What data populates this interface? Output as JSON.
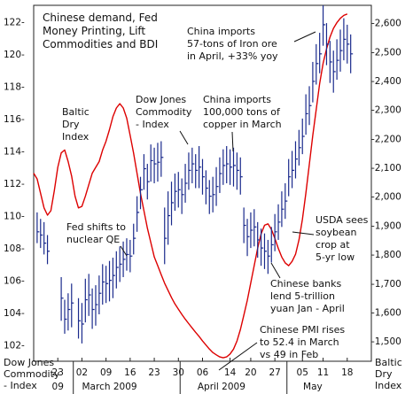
{
  "chart_data": {
    "type": "bar",
    "title_lines": [
      "Chinese demand, Fed",
      "Money Printing, Lift",
      "Commodities and BDI"
    ],
    "left_axis": {
      "label_lines": [
        "Dow Jones",
        "Commodity",
        "- Index"
      ],
      "range": [
        101,
        123
      ],
      "ticks": [
        102,
        104,
        106,
        108,
        110,
        112,
        114,
        116,
        118,
        120,
        122
      ],
      "tick_labels": [
        "102-",
        "104-",
        "106-",
        "108-",
        "110-",
        "112-",
        "114-",
        "116-",
        "118-",
        "120-",
        "122-"
      ]
    },
    "right_axis": {
      "label_lines": [
        "Baltic",
        "Dry",
        "Index"
      ],
      "color": "#cc0000",
      "range": [
        1430,
        2660
      ],
      "ticks": [
        1500,
        1600,
        1700,
        1800,
        1900,
        2000,
        2100,
        2200,
        2300,
        2400,
        2500,
        2600
      ],
      "tick_labels": [
        "-1,500",
        "-1,600",
        "-1,700",
        "-1,800",
        "-1,900",
        "-2,000",
        "-2,100",
        "-2,200",
        "-2,300",
        "-2,400",
        "-2,500",
        "-2,600"
      ]
    },
    "x_axis": {
      "days": [
        {
          "label": "23",
          "at": 0
        },
        {
          "label": "02",
          "at": 7
        },
        {
          "label": "09",
          "at": 14
        },
        {
          "label": "16",
          "at": 21
        },
        {
          "label": "23",
          "at": 28
        },
        {
          "label": "30",
          "at": 35
        },
        {
          "label": "06",
          "at": 42
        },
        {
          "label": "14",
          "at": 50
        },
        {
          "label": "20",
          "at": 56
        },
        {
          "label": "27",
          "at": 63
        },
        {
          "label": "05",
          "at": 71
        },
        {
          "label": "11",
          "at": 77
        },
        {
          "label": "18",
          "at": 84
        }
      ],
      "months": [
        {
          "label": "09",
          "at": 0
        },
        {
          "label": "March 2009",
          "at": 15
        },
        {
          "label": "April 2009",
          "at": 47.5
        },
        {
          "label": "May",
          "at": 74
        }
      ],
      "separators": [
        4.5,
        35.5,
        66.5
      ],
      "range": [
        -7,
        91
      ]
    },
    "series": [
      {
        "name": "Dow Jones Commodity - Index",
        "axis": "left",
        "color": "#1a2a8c",
        "style": "hlc_bars",
        "x": [
          -6,
          -5,
          -4,
          -3,
          1,
          2,
          3,
          4,
          6,
          7,
          8,
          9,
          10,
          11,
          12,
          13,
          14,
          15,
          16,
          17,
          18,
          19,
          20,
          21,
          22,
          23,
          24,
          25,
          26,
          27,
          28,
          29,
          30,
          31,
          32,
          33,
          34,
          35,
          36,
          37,
          38,
          39,
          40,
          41,
          42,
          43,
          44,
          45,
          46,
          47,
          48,
          49,
          50,
          51,
          52,
          53,
          54,
          55,
          56,
          57,
          58,
          59,
          60,
          61,
          62,
          63,
          64,
          65,
          66,
          67,
          68,
          69,
          70,
          71,
          72,
          73,
          74,
          75,
          76,
          77,
          78,
          79,
          80,
          81,
          82,
          83,
          84,
          85
        ],
        "high": [
          110.2,
          109.8,
          109.6,
          108.8,
          106.2,
          104.8,
          105.2,
          105.8,
          104.9,
          104.6,
          106.1,
          106.4,
          105.5,
          105.7,
          106.3,
          107.0,
          106.9,
          107.2,
          107.4,
          107.8,
          108.1,
          108.4,
          108.6,
          108.5,
          109.5,
          111.2,
          112.4,
          113.8,
          113.2,
          114.4,
          114.2,
          114.5,
          114.6,
          110.5,
          111.5,
          112.1,
          112.6,
          112.7,
          112.3,
          113.2,
          113.9,
          114.2,
          113.8,
          114.3,
          113.5,
          112.8,
          112.2,
          112.4,
          113.0,
          113.6,
          114.1,
          114.3,
          114.1,
          114.2,
          113.9,
          113.6,
          110.5,
          109.8,
          110.2,
          110.4,
          109.6,
          109.2,
          108.9,
          108.5,
          109.3,
          110.1,
          110.7,
          111.5,
          112.0,
          113.5,
          114.0,
          114.6,
          115.3,
          116.0,
          117.5,
          118.0,
          119.5,
          120.6,
          121.3,
          123.0,
          121.9,
          120.8,
          120.2,
          120.9,
          121.5,
          122.2,
          121.8,
          121.2
        ],
        "low": [
          108.3,
          108.0,
          107.6,
          107.0,
          103.5,
          102.7,
          102.9,
          103.1,
          102.4,
          102.1,
          103.4,
          103.8,
          103.0,
          103.2,
          103.9,
          104.5,
          104.6,
          104.7,
          104.9,
          105.5,
          105.9,
          106.2,
          106.6,
          106.5,
          107.6,
          109.0,
          110.4,
          111.6,
          111.0,
          112.1,
          112.0,
          112.1,
          112.4,
          107.0,
          108.2,
          109.4,
          110.3,
          110.5,
          110.1,
          110.8,
          111.6,
          112.0,
          111.7,
          111.7,
          111.3,
          110.7,
          110.1,
          110.2,
          110.6,
          111.4,
          111.9,
          112.0,
          111.9,
          111.8,
          111.6,
          111.3,
          108.3,
          107.5,
          108.0,
          108.1,
          107.4,
          106.9,
          106.7,
          106.4,
          107.1,
          107.8,
          108.5,
          109.3,
          109.8,
          111.2,
          111.7,
          112.3,
          113.1,
          113.8,
          115.0,
          115.6,
          117.0,
          118.1,
          118.8,
          120.5,
          119.3,
          118.2,
          117.6,
          118.4,
          118.9,
          119.6,
          119.4,
          118.8
        ],
        "close": [
          109.0,
          108.8,
          108.3,
          107.8,
          104.9,
          103.6,
          104.2,
          104.6,
          103.5,
          103.3,
          104.8,
          105.1,
          104.2,
          104.5,
          105.2,
          105.9,
          105.8,
          106.0,
          106.3,
          106.8,
          107.0,
          107.3,
          107.6,
          107.5,
          108.6,
          110.2,
          111.6,
          112.9,
          112.1,
          113.4,
          113.2,
          113.3,
          113.6,
          108.6,
          110.0,
          110.8,
          111.5,
          111.6,
          111.3,
          112.0,
          112.8,
          113.2,
          112.8,
          113.0,
          112.4,
          111.7,
          111.2,
          111.3,
          111.8,
          112.6,
          113.1,
          113.2,
          113.0,
          113.1,
          112.8,
          112.4,
          109.4,
          108.7,
          109.1,
          109.3,
          108.5,
          108.0,
          107.8,
          107.5,
          108.2,
          109.0,
          109.6,
          110.4,
          110.9,
          112.4,
          112.8,
          113.5,
          114.2,
          114.9,
          116.3,
          116.8,
          118.3,
          119.4,
          120.0,
          121.8,
          120.6,
          119.5,
          118.9,
          119.6,
          120.2,
          120.9,
          120.6,
          120.0
        ]
      },
      {
        "name": "Baltic Dry Index",
        "axis": "right",
        "color": "#dd0000",
        "style": "line",
        "x": [
          -7,
          -6,
          -5,
          -4,
          -3,
          -2,
          -1,
          0,
          1,
          2,
          3,
          4,
          5,
          6,
          7,
          8,
          9,
          10,
          11,
          12,
          13,
          14,
          15,
          16,
          17,
          18,
          19,
          20,
          21,
          22,
          23,
          24,
          25,
          26,
          27,
          28,
          29,
          30,
          31,
          32,
          33,
          34,
          35,
          36,
          37,
          38,
          39,
          40,
          41,
          42,
          43,
          44,
          45,
          46,
          47,
          48,
          49,
          50,
          51,
          52,
          53,
          54,
          55,
          56,
          57,
          58,
          59,
          60,
          61,
          62,
          63,
          64,
          65,
          66,
          67,
          68,
          69,
          70,
          71,
          72,
          73,
          74,
          75,
          76,
          77,
          78,
          79,
          80,
          81,
          82,
          83,
          84
        ],
        "y": [
          2080,
          2060,
          2010,
          1960,
          1935,
          1950,
          2020,
          2100,
          2150,
          2160,
          2120,
          2070,
          2000,
          1960,
          1965,
          2000,
          2040,
          2080,
          2100,
          2120,
          2160,
          2190,
          2230,
          2275,
          2305,
          2320,
          2305,
          2270,
          2210,
          2150,
          2080,
          2010,
          1950,
          1890,
          1840,
          1790,
          1760,
          1730,
          1700,
          1675,
          1650,
          1628,
          1610,
          1592,
          1575,
          1560,
          1545,
          1530,
          1516,
          1500,
          1486,
          1472,
          1460,
          1452,
          1445,
          1442,
          1445,
          1455,
          1472,
          1500,
          1540,
          1590,
          1640,
          1700,
          1760,
          1820,
          1870,
          1900,
          1905,
          1885,
          1855,
          1820,
          1790,
          1770,
          1760,
          1775,
          1800,
          1850,
          1920,
          2010,
          2110,
          2210,
          2300,
          2390,
          2460,
          2510,
          2550,
          2580,
          2600,
          2615,
          2625,
          2630
        ]
      }
    ],
    "annotations": [
      {
        "id": "baltic-dry-index-label",
        "lines": [
          "Baltic",
          "Dry",
          "Index"
        ],
        "color": "#cc0000"
      },
      {
        "id": "dow-jones-commodity-label",
        "lines": [
          "Dow Jones",
          "Commodity",
          "- Index"
        ],
        "color": "#1a2a8c"
      },
      {
        "id": "fed-qe-note",
        "lines": [
          "Fed shifts to",
          "nuclear QE"
        ],
        "color": "#111111"
      },
      {
        "id": "china-copper-note",
        "lines": [
          "China imports",
          "100,000 tons of",
          "copper in March"
        ],
        "color": "#111111"
      },
      {
        "id": "china-iron-ore-note",
        "lines": [
          "China imports",
          "57-tons of Iron ore",
          "in April, +33% yoy"
        ],
        "color": "#111111"
      },
      {
        "id": "usda-soybean-note",
        "lines": [
          "USDA sees",
          "soybean",
          "crop at",
          "5-yr low"
        ],
        "color": "#111111"
      },
      {
        "id": "chinese-banks-note",
        "lines": [
          "Chinese banks",
          "lend 5-trillion",
          "yuan Jan - April"
        ],
        "color": "#111111"
      },
      {
        "id": "chinese-pmi-note",
        "lines": [
          "Chinese PMI rises",
          "to 52.4 in March",
          "vs 49 in Feb"
        ],
        "color": "#111111"
      }
    ],
    "grid": false,
    "legend": "none"
  }
}
